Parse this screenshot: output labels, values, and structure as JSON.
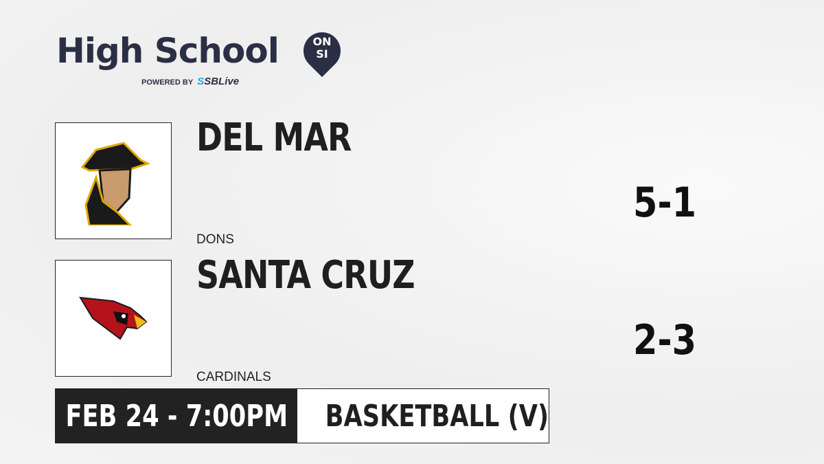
{
  "brand": {
    "title": "High School",
    "badge_top": "ON",
    "badge_bottom": "SI",
    "powered_by": "POWERED BY",
    "partner": "SBLive"
  },
  "teams": [
    {
      "name": "DEL MAR",
      "mascot": "DONS",
      "record": "5-1"
    },
    {
      "name": "SANTA CRUZ",
      "mascot": "CARDINALS",
      "record": "2-3"
    }
  ],
  "game": {
    "datetime": "FEB 24 - 7:00PM",
    "sport": "BASKETBALL (V)"
  }
}
